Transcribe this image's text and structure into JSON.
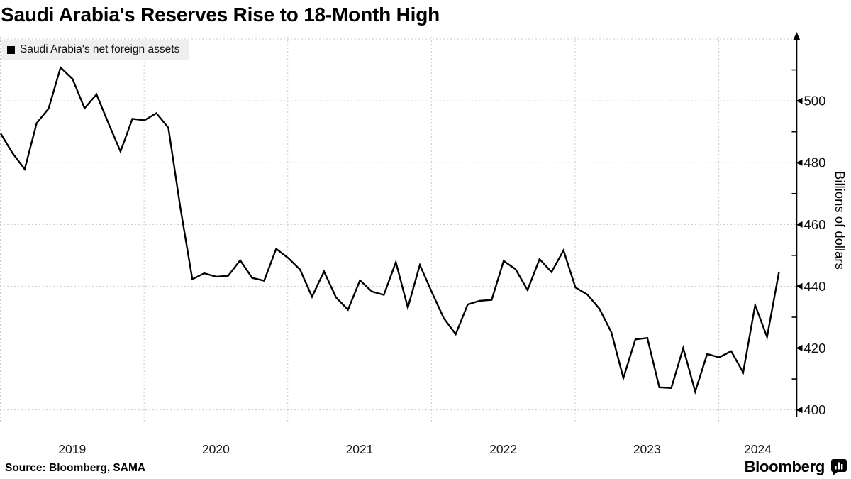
{
  "title": "Saudi Arabia's Reserves Rise to 18-Month High",
  "legend": {
    "label": "Saudi Arabia's net foreign assets",
    "swatch_color": "#000000"
  },
  "source": "Source: Bloomberg, SAMA",
  "branding": {
    "logo_text": "Bloomberg",
    "logo_icon": "bloomberg-speech-bubble-bar-chart-icon"
  },
  "chart_data": {
    "type": "line",
    "title": "Saudi Arabia's Reserves Rise to 18-Month High",
    "ylabel": "Billions of dollars",
    "xlabel": "",
    "legend_position": "top-left",
    "grid": "dashed, both axes, light gray",
    "x_tick_labels": [
      "2019",
      "2020",
      "2021",
      "2022",
      "2023",
      "2024"
    ],
    "y_major_ticks": [
      400,
      420,
      440,
      460,
      480,
      500
    ],
    "y_minor_ticks": [
      410,
      430,
      450,
      470,
      490,
      510
    ],
    "y_gridlines": [
      400,
      420,
      440,
      460,
      480,
      500,
      520
    ],
    "ylim": [
      398,
      521
    ],
    "frequency": "monthly",
    "x_start": "2019-01",
    "x_end": "2024-06",
    "series": [
      {
        "name": "Saudi Arabia's net foreign assets",
        "color": "#000000",
        "values": [
          489.4,
          483.0,
          477.9,
          492.8,
          497.5,
          510.8,
          507.1,
          497.6,
          502.1,
          492.7,
          483.6,
          494.2,
          493.7,
          496.0,
          491.3,
          465.5,
          442.3,
          444.2,
          443.1,
          443.4,
          448.4,
          442.7,
          441.8,
          452.1,
          449.2,
          445.4,
          436.6,
          444.8,
          436.4,
          432.4,
          441.9,
          438.3,
          437.2,
          447.8,
          433.1,
          446.9,
          438.1,
          429.7,
          424.5,
          434.1,
          435.3,
          435.6,
          448.2,
          445.5,
          438.8,
          448.8,
          444.6,
          451.6,
          439.6,
          437.3,
          432.7,
          425.1,
          410.3,
          422.8,
          423.3,
          407.3,
          407.1,
          420.0,
          405.9,
          418.1,
          417.0,
          419.0,
          412.1,
          433.9,
          423.6,
          444.7
        ]
      }
    ],
    "colors": {
      "line": "#000000",
      "grid": "#c9c9c9",
      "background": "#ffffff",
      "legend_bg": "#efefef"
    }
  }
}
